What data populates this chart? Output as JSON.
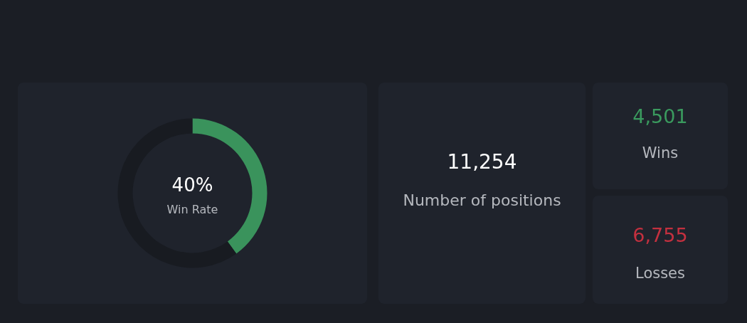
{
  "chart_data": [
    {
      "type": "donut",
      "categories": [
        null,
        null
      ],
      "values": [
        40,
        60
      ],
      "colors": [
        "#3a935c",
        "#181b21"
      ],
      "annotations": [
        "40%",
        "Win Rate"
      ]
    },
    {
      "type": "other",
      "annotations": [
        "11,254",
        "Number of positions"
      ],
      "colors": [
        "#ffffff",
        "#b5b8be"
      ]
    },
    {
      "type": "other",
      "annotations": [
        "4,501",
        "Wins"
      ],
      "colors": [
        "#3a9a5e",
        "#b5b8be"
      ]
    },
    {
      "type": "other",
      "annotations": [
        "6,755",
        "Losses"
      ],
      "colors": [
        "#c4303f",
        "#b5b8be"
      ]
    }
  ]
}
